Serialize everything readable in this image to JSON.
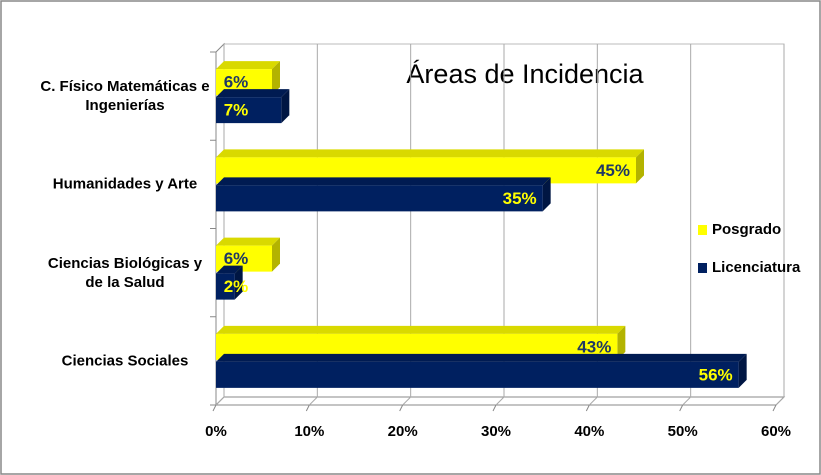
{
  "chart_data": {
    "type": "bar",
    "orientation": "horizontal",
    "title": "Áreas de Incidencia",
    "categories": [
      "C. Físico Matemáticas e Ingenierías",
      "Humanidades y Arte",
      "Ciencias Biológicas y de la Salud",
      "Ciencias Sociales"
    ],
    "series": [
      {
        "name": "Posgrado",
        "color": "#ffff00",
        "values": [
          6,
          45,
          6,
          43
        ],
        "value_labels": [
          "6%",
          "45%",
          "6%",
          "43%"
        ]
      },
      {
        "name": "Licenciatura",
        "color": "#002060",
        "values": [
          7,
          35,
          2,
          56
        ],
        "value_labels": [
          "7%",
          "35%",
          "2%",
          "56%"
        ]
      }
    ],
    "xlim": [
      0,
      60
    ],
    "xticks": [
      {
        "value": 0,
        "label": "0%"
      },
      {
        "value": 10,
        "label": "10%"
      },
      {
        "value": 20,
        "label": "20%"
      },
      {
        "value": 30,
        "label": "30%"
      },
      {
        "value": 40,
        "label": "40%"
      },
      {
        "value": 50,
        "label": "50%"
      },
      {
        "value": 60,
        "label": "60%"
      }
    ],
    "grid": true,
    "legend": "right"
  }
}
